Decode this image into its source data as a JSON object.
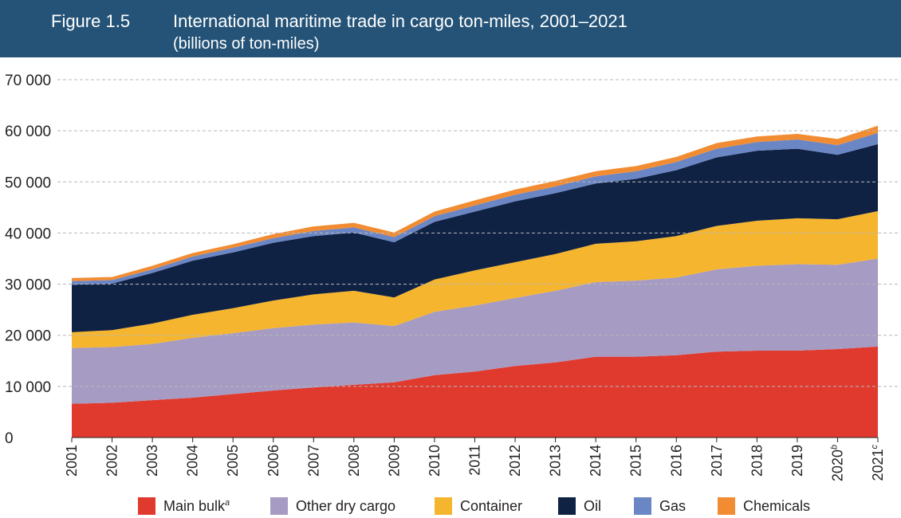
{
  "header": {
    "figure_label": "Figure 1.5",
    "title": "International maritime trade in cargo ton-miles, 2001–2021",
    "subtitle": "(billions of ton-miles)"
  },
  "colors": {
    "header_bg": "#245377",
    "Main bulk": "#e03a2f",
    "Other dry cargo": "#a69bc2",
    "Container": "#f5b52e",
    "Oil": "#0f2244",
    "Gas": "#6b86c4",
    "Chemicals": "#f18c33",
    "grid": "#b8b8b8"
  },
  "chart_data": {
    "type": "area",
    "stacked": true,
    "title": "International maritime trade in cargo ton-miles, 2001–2021",
    "subtitle": "(billions of ton-miles)",
    "xlabel": "",
    "ylabel": "",
    "ylim": [
      0,
      70000
    ],
    "yticks": [
      0,
      10000,
      20000,
      30000,
      40000,
      50000,
      60000,
      70000
    ],
    "ytick_labels": [
      "0",
      "10 000",
      "20 000",
      "30 000",
      "40 000",
      "50 000",
      "60 000",
      "70 000"
    ],
    "grid": "horizontal dashed",
    "legend_position": "bottom",
    "categories": [
      "2001",
      "2002",
      "2003",
      "2004",
      "2005",
      "2006",
      "2007",
      "2008",
      "2009",
      "2010",
      "2011",
      "2012",
      "2013",
      "2014",
      "2015",
      "2016",
      "2017",
      "2018",
      "2019",
      "2020",
      "2021"
    ],
    "category_superscripts": {
      "2020": "b",
      "2021": "c"
    },
    "series": [
      {
        "name": "Main bulk",
        "superscript": "a",
        "values": [
          6600,
          6800,
          7300,
          7800,
          8500,
          9200,
          9800,
          10300,
          10800,
          12200,
          12900,
          14000,
          14700,
          15800,
          15800,
          16100,
          16800,
          17000,
          17000,
          17300,
          17800
        ]
      },
      {
        "name": "Other dry cargo",
        "values": [
          10900,
          10900,
          11000,
          11700,
          11900,
          12200,
          12300,
          12200,
          11000,
          12400,
          12900,
          13300,
          14000,
          14600,
          14900,
          15200,
          16100,
          16600,
          16900,
          16500,
          17200
        ]
      },
      {
        "name": "Container",
        "values": [
          3100,
          3300,
          4000,
          4500,
          4900,
          5400,
          5900,
          6200,
          5600,
          6300,
          6900,
          7000,
          7200,
          7500,
          7700,
          8100,
          8500,
          8800,
          9000,
          8900,
          9300
        ]
      },
      {
        "name": "Oil",
        "values": [
          9300,
          9100,
          9900,
          10600,
          10900,
          11300,
          11400,
          11400,
          10800,
          11300,
          11500,
          11900,
          11900,
          11800,
          12200,
          12900,
          13400,
          13700,
          13600,
          12600,
          13100
        ]
      },
      {
        "name": "Gas",
        "values": [
          700,
          700,
          700,
          800,
          900,
          900,
          1000,
          1000,
          1000,
          1100,
          1200,
          1300,
          1300,
          1400,
          1500,
          1600,
          1700,
          1700,
          1800,
          1900,
          2200
        ]
      },
      {
        "name": "Chemicals",
        "values": [
          600,
          600,
          700,
          700,
          700,
          800,
          900,
          900,
          900,
          900,
          1000,
          1000,
          1100,
          1000,
          1000,
          1000,
          1100,
          1100,
          1100,
          1200,
          1400
        ]
      }
    ]
  }
}
